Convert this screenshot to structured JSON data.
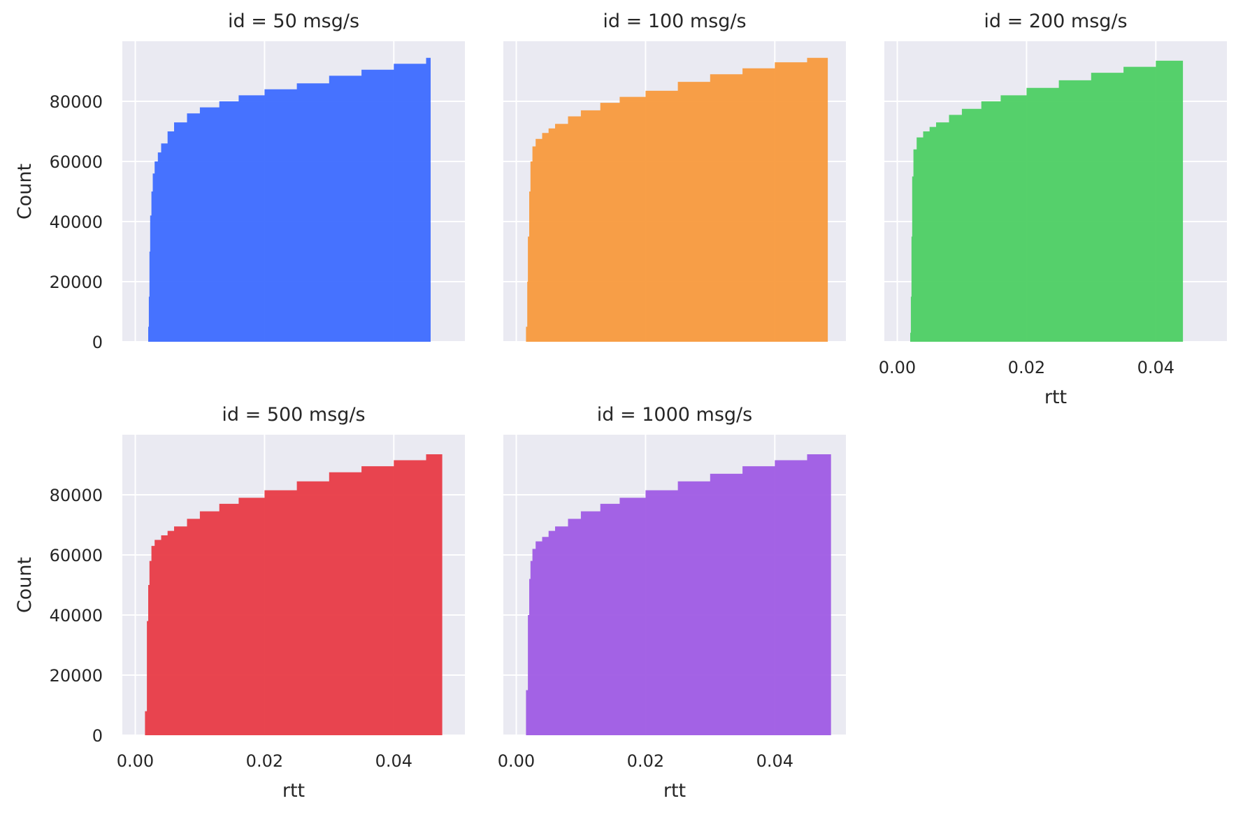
{
  "chart_data": {
    "type": "area",
    "subtype": "cumulative step histogram (facet grid)",
    "shared_ylabel": "Count",
    "shared_xlabel": "rtt",
    "ylim": [
      0,
      100000
    ],
    "yticks": [
      0,
      20000,
      40000,
      60000,
      80000
    ],
    "xlim": [
      -0.002,
      0.051
    ],
    "xticks": [
      "0.00",
      "0.02",
      "0.04"
    ],
    "grid": true,
    "background": "#eaeaf2",
    "panels": [
      {
        "title": "id = 50 msg/s",
        "color": "#3d6bff",
        "show_xticks": false,
        "show_yticks": true,
        "show_ylabel": true,
        "show_xlabel": false,
        "x": [
          0.0018,
          0.002,
          0.0021,
          0.0022,
          0.0023,
          0.0025,
          0.0027,
          0.003,
          0.0035,
          0.004,
          0.005,
          0.006,
          0.008,
          0.01,
          0.013,
          0.016,
          0.02,
          0.025,
          0.03,
          0.035,
          0.04,
          0.045,
          0.0457
        ],
        "y": [
          0,
          5000,
          15000,
          30000,
          42000,
          50000,
          56000,
          60000,
          63000,
          66000,
          70000,
          73000,
          76000,
          78000,
          80000,
          82000,
          84000,
          86000,
          88500,
          90500,
          92500,
          94500,
          95000
        ]
      },
      {
        "title": "id = 100 msg/s",
        "color": "#f89a3d",
        "show_xticks": false,
        "show_yticks": false,
        "show_ylabel": false,
        "show_xlabel": false,
        "x": [
          0.0012,
          0.0015,
          0.0017,
          0.0018,
          0.002,
          0.0022,
          0.0025,
          0.003,
          0.004,
          0.005,
          0.006,
          0.008,
          0.01,
          0.013,
          0.016,
          0.02,
          0.025,
          0.03,
          0.035,
          0.04,
          0.045,
          0.0482
        ],
        "y": [
          0,
          5000,
          20000,
          35000,
          50000,
          60000,
          65000,
          67500,
          69500,
          71000,
          72500,
          75000,
          77000,
          79500,
          81500,
          83500,
          86500,
          89000,
          91000,
          93000,
          94500,
          95000
        ]
      },
      {
        "title": "id = 200 msg/s",
        "color": "#4dcf63",
        "show_xticks": true,
        "show_yticks": false,
        "show_ylabel": false,
        "show_xlabel": true,
        "x": [
          0.0018,
          0.002,
          0.0021,
          0.0022,
          0.0023,
          0.0025,
          0.003,
          0.004,
          0.005,
          0.006,
          0.008,
          0.01,
          0.013,
          0.016,
          0.02,
          0.025,
          0.03,
          0.035,
          0.04,
          0.0442
        ],
        "y": [
          0,
          3000,
          15000,
          35000,
          55000,
          64000,
          68000,
          70000,
          71500,
          73000,
          75500,
          77500,
          80000,
          82000,
          84500,
          87000,
          89500,
          91500,
          93500,
          95000
        ]
      },
      {
        "title": "id = 500 msg/s",
        "color": "#e83b46",
        "show_xticks": true,
        "show_yticks": true,
        "show_ylabel": true,
        "show_xlabel": true,
        "x": [
          0.0012,
          0.0015,
          0.0018,
          0.002,
          0.0022,
          0.0025,
          0.003,
          0.004,
          0.005,
          0.006,
          0.008,
          0.01,
          0.013,
          0.016,
          0.02,
          0.025,
          0.03,
          0.035,
          0.04,
          0.045,
          0.0475
        ],
        "y": [
          0,
          8000,
          38000,
          50000,
          58000,
          63000,
          65000,
          66500,
          68000,
          69500,
          72000,
          74500,
          77000,
          79000,
          81500,
          84500,
          87500,
          89500,
          91500,
          93500,
          95000
        ]
      },
      {
        "title": "id = 1000 msg/s",
        "color": "#9f5be4",
        "show_xticks": true,
        "show_yticks": false,
        "show_ylabel": false,
        "show_xlabel": true,
        "x": [
          0.0012,
          0.0015,
          0.0018,
          0.002,
          0.0022,
          0.0025,
          0.003,
          0.004,
          0.005,
          0.006,
          0.008,
          0.01,
          0.013,
          0.016,
          0.02,
          0.025,
          0.03,
          0.035,
          0.04,
          0.045,
          0.0487
        ],
        "y": [
          0,
          15000,
          40000,
          52000,
          58000,
          62000,
          64500,
          66000,
          68000,
          69500,
          72000,
          74500,
          77000,
          79000,
          81500,
          84500,
          87000,
          89500,
          91500,
          93500,
          95000
        ]
      }
    ]
  }
}
